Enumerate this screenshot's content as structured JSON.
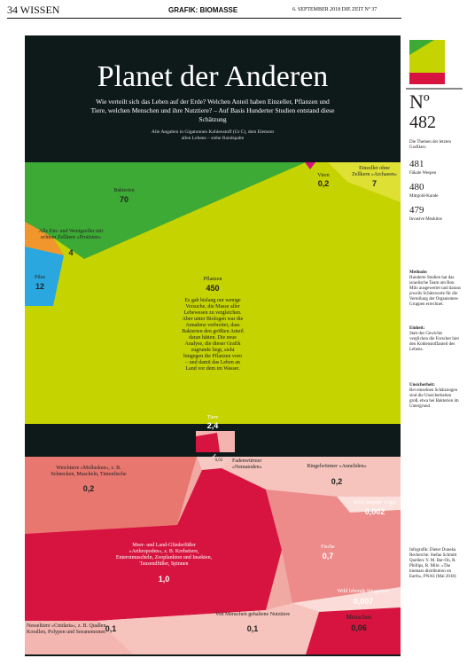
{
  "header": {
    "left": "34  WISSEN",
    "center": "GRAFIK: BIOMASSE",
    "right": "6. SEPTEMBER 2018  DIE ZEIT  Nº 37"
  },
  "title": "Planet der Anderen",
  "subtitle": "Wie verteilt sich das Leben auf der Erde? Welchen Anteil haben Einzeller, Pflanzen und Tiere, welchen Menschen und ihre Nutztiere? – Auf Basis Hunderter Studien entstand diese Schätzung",
  "note": "Alle Angaben in Gigatonnen Kohlenstoff (Gt C), dem Element allen Lebens – siehe Randspalte",
  "upper": [
    {
      "label": "Bakterien",
      "value": "70"
    },
    {
      "label": "Viren",
      "value": "0,2"
    },
    {
      "label": "Einzeller ohne Zellkern »Archaeen«",
      "value": "7"
    },
    {
      "label": "Alle Ein- und Wenigzeller mit echtem Zellkern »Protisten«",
      "value": "4"
    },
    {
      "label": "Pilze",
      "value": "12"
    },
    {
      "label": "Pflanzen",
      "value": "450"
    }
  ],
  "plants_text": "Es gab bislang nur wenige Versuche, die Masse aller Lebewesen zu vergleichen. Aber unter Biologen war die Annahme verbreitet, dass Bakterien den größten Anteil daran hätten. Die neue Analyse, die dieser Grafik zugrunde liegt, sieht hingegen die Pflanzen vorn – und damit das Leben an Land vor dem im Wasser.",
  "animals": {
    "label": "Tiere",
    "value": "2,4"
  },
  "lower": [
    {
      "label": "Fadenwürmer »Nematoden«",
      "value": "0,02"
    },
    {
      "label": "Weichtiere »Mollusken«, z. B. Schnecken, Muscheln, Tintenfische",
      "value": "0,2"
    },
    {
      "label": "Ringelwürmer »Anneliden«",
      "value": "0,2"
    },
    {
      "label": "Wild lebende Vögel",
      "value": "0,002"
    },
    {
      "label": "Meer- und Land-Gliederfüßer »Arthropoden«, z. B. Krebstiere, Enterotmuscheln, Zooplankton und Insekten, Tausendfüßer, Spinnen",
      "value": "1,0"
    },
    {
      "label": "Fische",
      "value": "0,7"
    },
    {
      "label": "Wild lebende Säugetiere",
      "value": "0,007"
    },
    {
      "label": "Nesseltiere »Cnidaria«, z. B. Quallen, Korallen, Polypen und Seeanemonen",
      "value": "0,1"
    },
    {
      "label": "Von Menschen gehaltene Nutztiere",
      "value": "0,1"
    },
    {
      "label": "Menschen",
      "value": "0,06"
    }
  ],
  "sidebar": {
    "no": "Nº",
    "issue": "482",
    "recent": "Die Themen der letzten Grafiken:",
    "items": [
      {
        "no": "481",
        "text": "Fäkale Wespen"
      },
      {
        "no": "480",
        "text": "Mittgold-Kunde"
      },
      {
        "no": "479",
        "text": "Invasive Moskitos"
      }
    ],
    "method_head": "Methode:",
    "method": "Hunderte Studien hat das israelische Team um Ron Milo ausgewertet und daraus jeweils Schätzwerte für die Verteilung der Organismen-Gruppen errechnet.",
    "unit_head": "Einheit:",
    "unit": "Statt des Gewichts verglichen die Forscher hier den Kohlenstoffanteil des Lebens.",
    "uncert_head": "Unsicherheit:",
    "uncert": "Bei einzelnen Schätzungen sind die Unsicherheiten groß, etwa bei Bakterien im Untergrund.",
    "credits": "Infografik: Dieter Duneka  Recherche: Stefan Schmitt  Quellen: Y. M. Bar-On, R. Phillips, R. Milo: »The biomass distribution on Earth«, PNAS (Mai 2018)"
  }
}
